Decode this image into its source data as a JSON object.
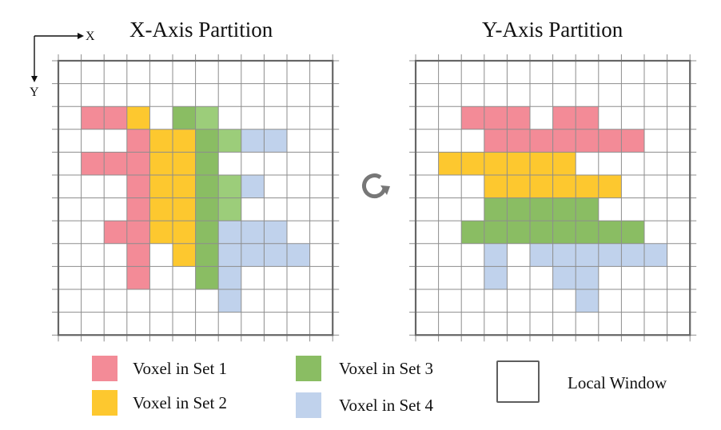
{
  "titles": {
    "left": "X-Axis Partition",
    "right": "Y-Axis Partition"
  },
  "axes": {
    "x": "X",
    "y": "Y"
  },
  "colors": {
    "set1": "#f38b97",
    "set2": "#fdc82f",
    "set3": "#8abd63",
    "set3_light": "#9ccd7a",
    "set4": "#c0d2ec",
    "grid_line": "#8d8d8d",
    "border": "#666666",
    "background": "#ffffff"
  },
  "legend": [
    {
      "label": "Voxel in Set 1",
      "color": "#f38b97"
    },
    {
      "label": "Voxel in Set 2",
      "color": "#fdc82f"
    },
    {
      "label": "Voxel in Set 3",
      "color": "#8abd63"
    },
    {
      "label": "Voxel in Set 4",
      "color": "#c0d2ec"
    }
  ],
  "local_window_label": "Local Window",
  "rotate_icon": "rotate-clockwise-icon",
  "grids": [
    {
      "name": "x-axis-partition",
      "rows": 12,
      "cols": 12,
      "cells": [
        [
          2,
          1,
          1
        ],
        [
          2,
          2,
          1
        ],
        [
          2,
          3,
          2
        ],
        [
          2,
          5,
          3
        ],
        [
          2,
          6,
          "3l"
        ],
        [
          3,
          3,
          1
        ],
        [
          3,
          4,
          2
        ],
        [
          3,
          5,
          2
        ],
        [
          3,
          6,
          3
        ],
        [
          3,
          7,
          "3l"
        ],
        [
          3,
          8,
          4
        ],
        [
          3,
          9,
          4
        ],
        [
          4,
          1,
          1
        ],
        [
          4,
          2,
          1
        ],
        [
          4,
          3,
          1
        ],
        [
          4,
          4,
          2
        ],
        [
          4,
          5,
          2
        ],
        [
          4,
          6,
          3
        ],
        [
          5,
          3,
          1
        ],
        [
          5,
          4,
          2
        ],
        [
          5,
          5,
          2
        ],
        [
          5,
          6,
          3
        ],
        [
          5,
          7,
          "3l"
        ],
        [
          5,
          8,
          4
        ],
        [
          6,
          3,
          1
        ],
        [
          6,
          4,
          2
        ],
        [
          6,
          5,
          2
        ],
        [
          6,
          6,
          3
        ],
        [
          6,
          7,
          "3l"
        ],
        [
          7,
          2,
          1
        ],
        [
          7,
          3,
          1
        ],
        [
          7,
          4,
          2
        ],
        [
          7,
          5,
          2
        ],
        [
          7,
          6,
          3
        ],
        [
          7,
          7,
          4
        ],
        [
          7,
          8,
          4
        ],
        [
          7,
          9,
          4
        ],
        [
          8,
          3,
          1
        ],
        [
          8,
          5,
          2
        ],
        [
          8,
          6,
          3
        ],
        [
          8,
          7,
          4
        ],
        [
          8,
          8,
          4
        ],
        [
          8,
          9,
          4
        ],
        [
          8,
          10,
          4
        ],
        [
          9,
          3,
          1
        ],
        [
          9,
          6,
          3
        ],
        [
          9,
          7,
          4
        ],
        [
          10,
          7,
          4
        ]
      ]
    },
    {
      "name": "y-axis-partition",
      "rows": 12,
      "cols": 12,
      "cells": [
        [
          2,
          2,
          1
        ],
        [
          2,
          3,
          1
        ],
        [
          2,
          4,
          1
        ],
        [
          2,
          6,
          1
        ],
        [
          2,
          7,
          1
        ],
        [
          3,
          3,
          1
        ],
        [
          3,
          4,
          1
        ],
        [
          3,
          5,
          1
        ],
        [
          3,
          6,
          1
        ],
        [
          3,
          7,
          1
        ],
        [
          3,
          8,
          1
        ],
        [
          3,
          9,
          1
        ],
        [
          4,
          1,
          2
        ],
        [
          4,
          2,
          2
        ],
        [
          4,
          3,
          2
        ],
        [
          4,
          4,
          2
        ],
        [
          4,
          5,
          2
        ],
        [
          4,
          6,
          2
        ],
        [
          5,
          3,
          2
        ],
        [
          5,
          4,
          2
        ],
        [
          5,
          5,
          2
        ],
        [
          5,
          6,
          2
        ],
        [
          5,
          7,
          2
        ],
        [
          5,
          8,
          2
        ],
        [
          6,
          3,
          3
        ],
        [
          6,
          4,
          3
        ],
        [
          6,
          5,
          3
        ],
        [
          6,
          6,
          3
        ],
        [
          6,
          7,
          3
        ],
        [
          7,
          2,
          3
        ],
        [
          7,
          3,
          3
        ],
        [
          7,
          4,
          3
        ],
        [
          7,
          5,
          3
        ],
        [
          7,
          6,
          3
        ],
        [
          7,
          7,
          3
        ],
        [
          7,
          8,
          3
        ],
        [
          7,
          9,
          3
        ],
        [
          8,
          3,
          4
        ],
        [
          8,
          5,
          4
        ],
        [
          8,
          6,
          4
        ],
        [
          8,
          7,
          4
        ],
        [
          8,
          8,
          4
        ],
        [
          8,
          9,
          4
        ],
        [
          8,
          10,
          4
        ],
        [
          9,
          3,
          4
        ],
        [
          9,
          6,
          4
        ],
        [
          9,
          7,
          4
        ],
        [
          10,
          7,
          4
        ]
      ]
    }
  ]
}
